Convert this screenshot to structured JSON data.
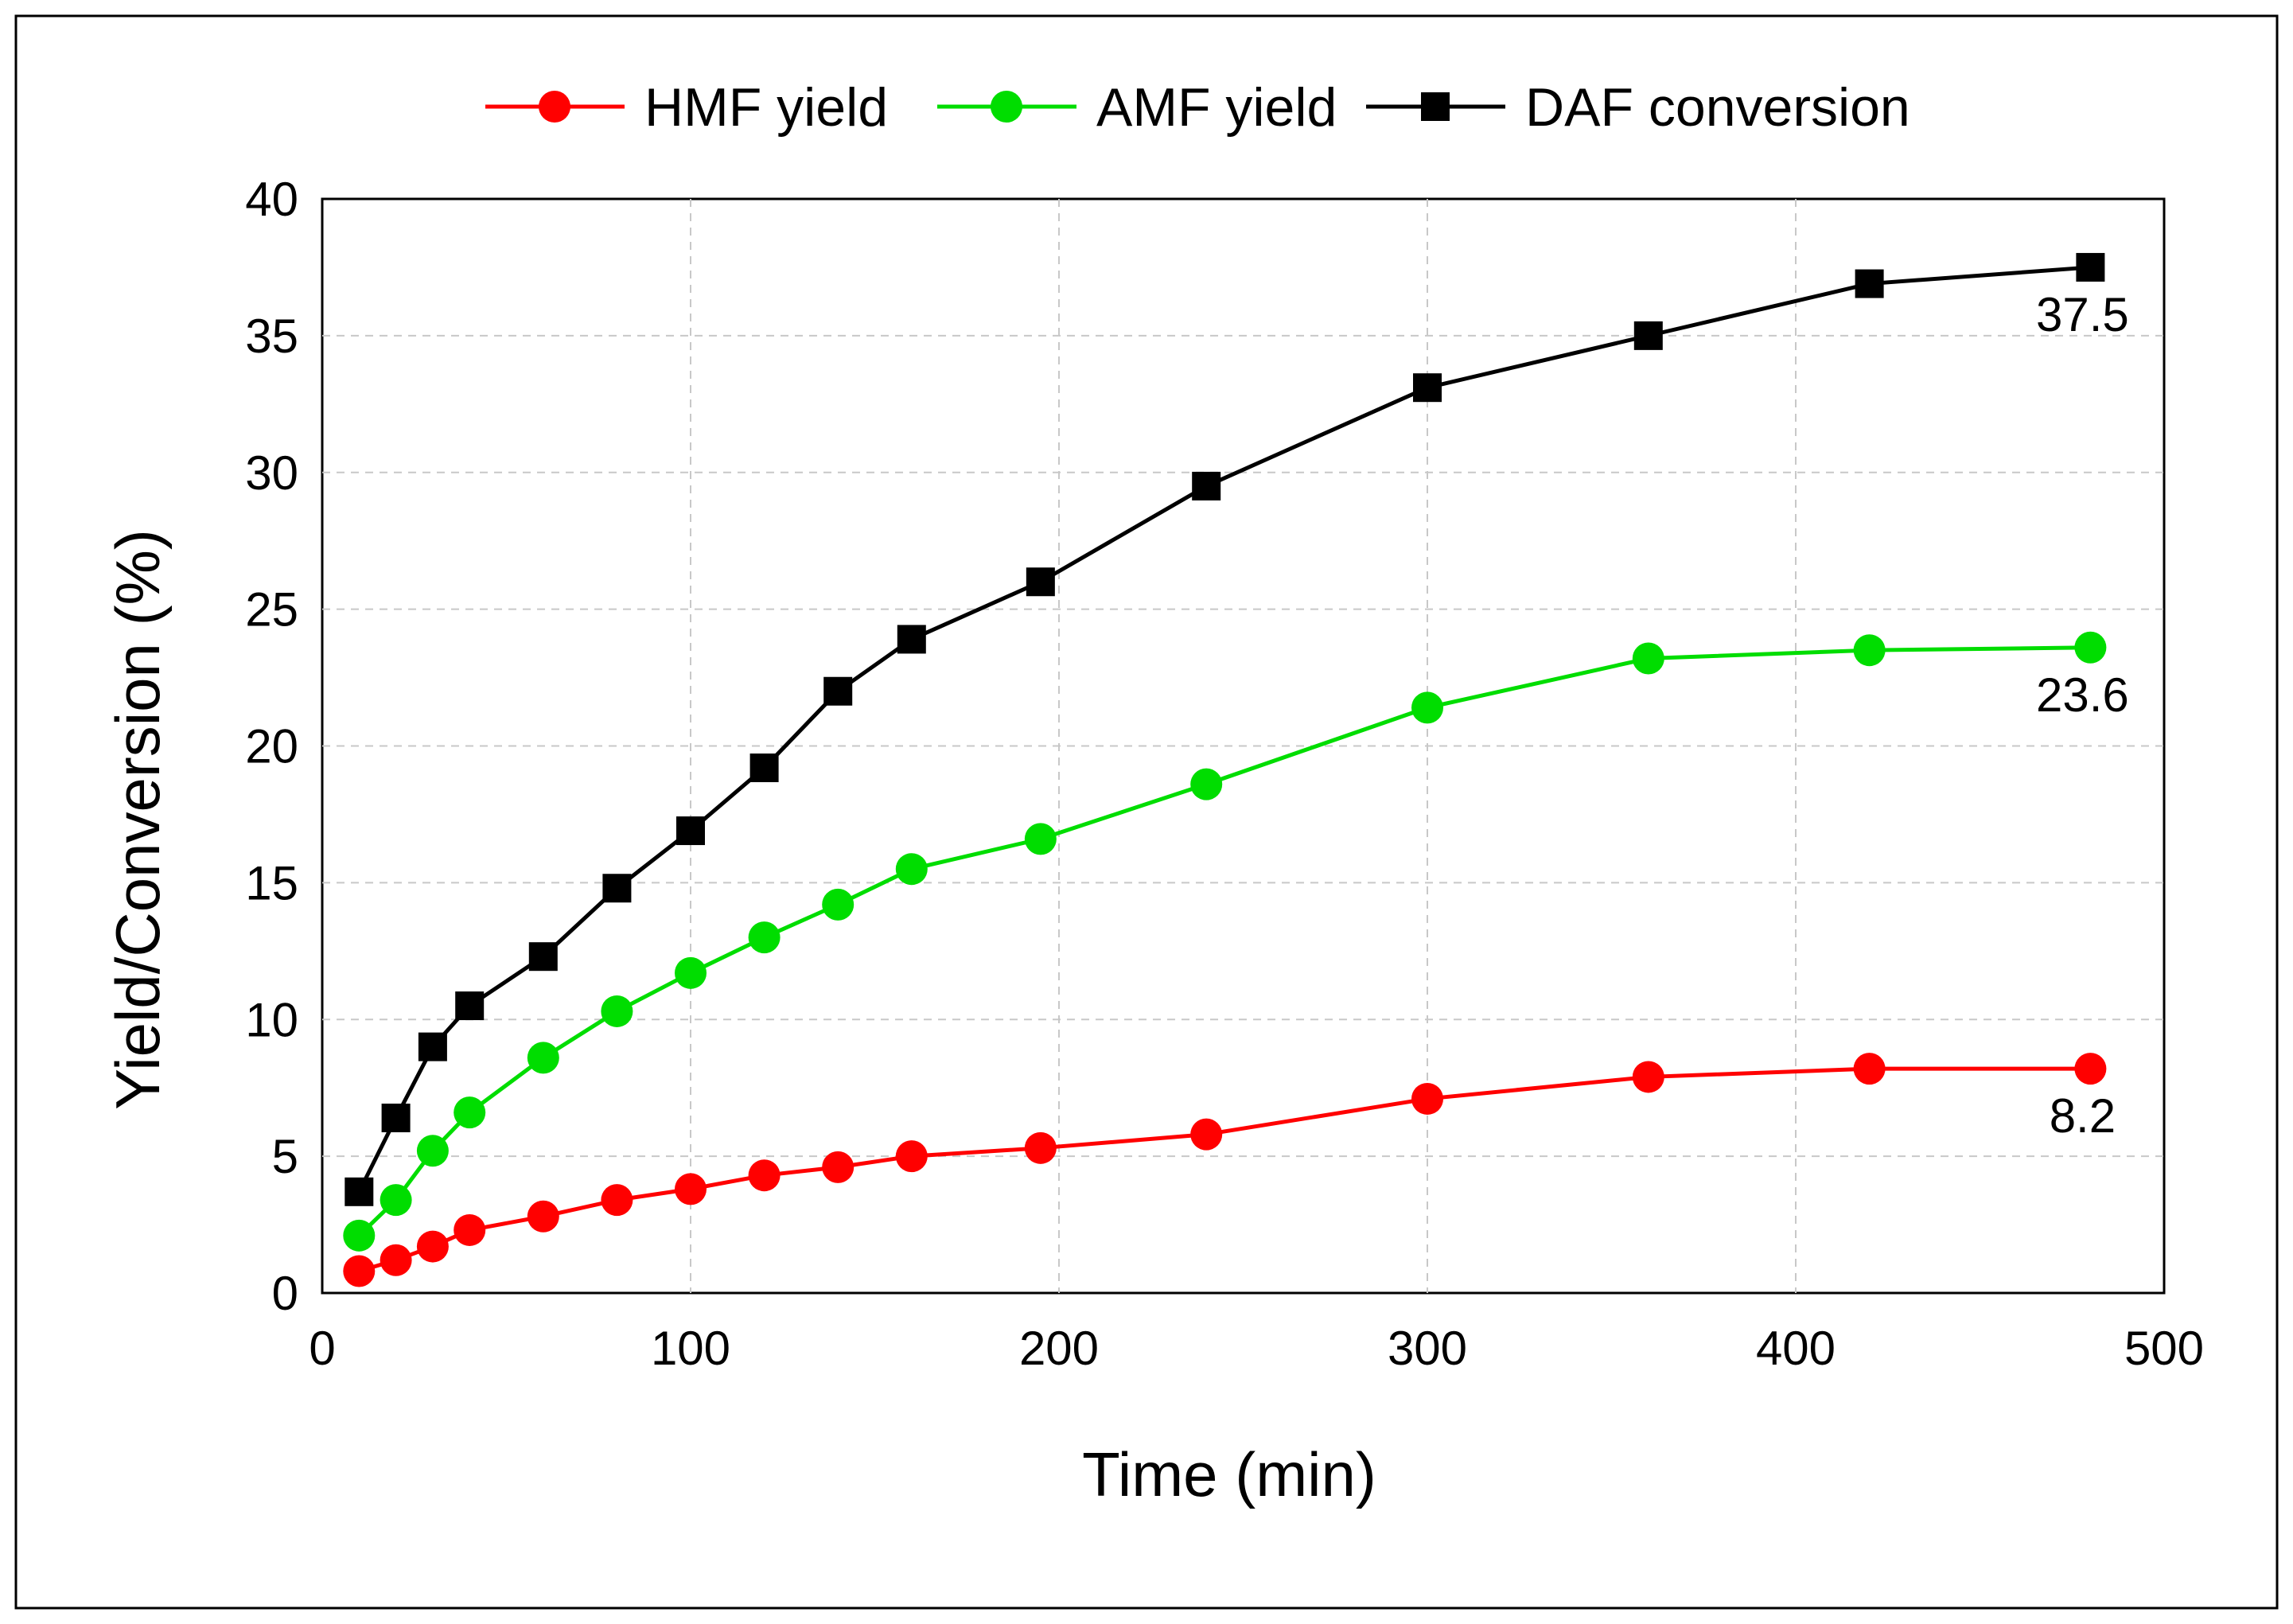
{
  "chart_data": {
    "type": "line",
    "title": "",
    "xlabel": "Time (min)",
    "ylabel": "Yield/Conversion (%)",
    "xlim": [
      0,
      500
    ],
    "ylim": [
      0,
      40
    ],
    "xticks": [
      0,
      100,
      200,
      300,
      400,
      500
    ],
    "yticks": [
      0,
      5,
      10,
      15,
      20,
      25,
      30,
      35,
      40
    ],
    "grid": true,
    "legend_position": "top",
    "series": [
      {
        "name": "HMF yield",
        "color": "#ff0000",
        "marker": "circle",
        "x": [
          10,
          20,
          30,
          40,
          60,
          80,
          100,
          120,
          140,
          160,
          195,
          240,
          300,
          360,
          420,
          480
        ],
        "values": [
          0.8,
          1.2,
          1.7,
          2.3,
          2.8,
          3.4,
          3.8,
          4.3,
          4.6,
          5.0,
          5.3,
          5.8,
          7.1,
          7.9,
          8.2,
          8.2
        ],
        "end_label": "8.2"
      },
      {
        "name": "AMF yield",
        "color": "#00dd00",
        "marker": "circle",
        "x": [
          10,
          20,
          30,
          40,
          60,
          80,
          100,
          120,
          140,
          160,
          195,
          240,
          300,
          360,
          420,
          480
        ],
        "values": [
          2.1,
          3.4,
          5.2,
          6.6,
          8.6,
          10.3,
          11.7,
          13.0,
          14.2,
          15.5,
          16.6,
          18.6,
          21.4,
          23.2,
          23.5,
          23.6
        ],
        "end_label": "23.6"
      },
      {
        "name": "DAF conversion",
        "color": "#000000",
        "marker": "square",
        "x": [
          10,
          20,
          30,
          40,
          60,
          80,
          100,
          120,
          140,
          160,
          195,
          240,
          300,
          360,
          420,
          480
        ],
        "values": [
          3.7,
          6.4,
          9.0,
          10.5,
          12.3,
          14.8,
          16.9,
          19.2,
          22.0,
          23.9,
          26.0,
          29.5,
          33.1,
          35.0,
          36.9,
          37.5
        ],
        "end_label": "37.5"
      }
    ]
  }
}
